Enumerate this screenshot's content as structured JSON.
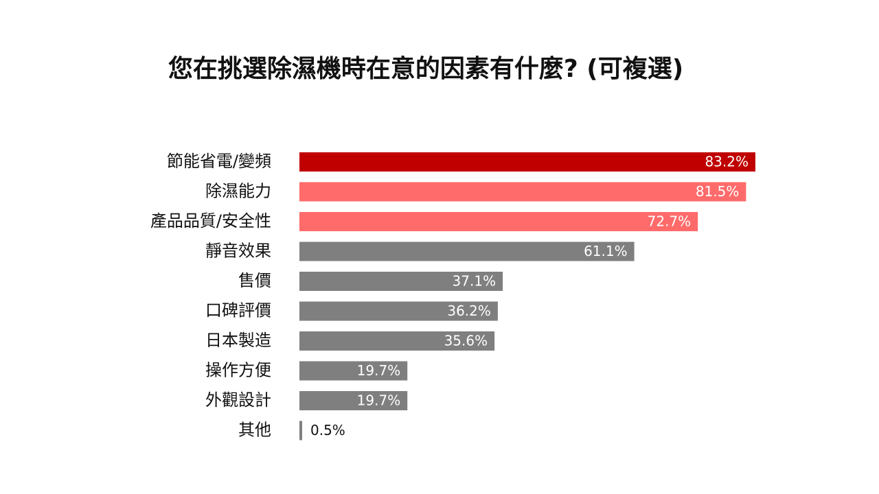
{
  "chart_data": {
    "type": "hbar",
    "title": "您在挑選除濕機時在意的因素有什麼? (可複選)",
    "categories": [
      "節能省電/變頻",
      "除濕能力",
      "產品品質/安全性",
      "靜音效果",
      "售價",
      "口碑評價",
      "日本製造",
      "操作方便",
      "外觀設計",
      "其他"
    ],
    "values": [
      83.2,
      81.5,
      72.7,
      61.1,
      37.1,
      36.2,
      35.6,
      19.7,
      19.7,
      0.5
    ],
    "value_labels": [
      "83.2%",
      "81.5%",
      "72.7%",
      "61.1%",
      "37.1%",
      "36.2%",
      "35.6%",
      "19.7%",
      "19.7%",
      "0.5%"
    ],
    "colors": [
      "#c00000",
      "#ff6b6b",
      "#ff6b6b",
      "#7f7f7f",
      "#7f7f7f",
      "#7f7f7f",
      "#7f7f7f",
      "#7f7f7f",
      "#7f7f7f",
      "#7f7f7f"
    ]
  }
}
